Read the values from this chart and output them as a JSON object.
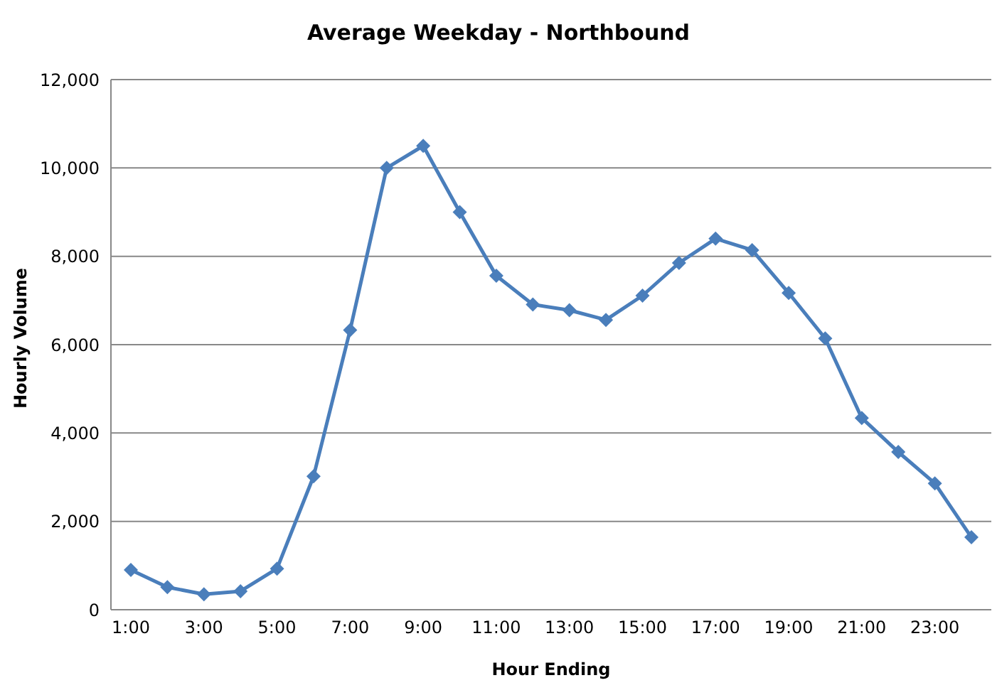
{
  "chart_data": {
    "type": "line",
    "title": "Average Weekday - Northbound",
    "xlabel": "Hour Ending",
    "ylabel": "Hourly Volume",
    "categories": [
      "1:00",
      null,
      "3:00",
      null,
      "5:00",
      null,
      "7:00",
      null,
      "9:00",
      null,
      "11:00",
      null,
      "13:00",
      null,
      "15:00",
      null,
      "17:00",
      null,
      "19:00",
      null,
      "21:00",
      null,
      "23:00",
      null
    ],
    "series": [
      {
        "color": "#4a7ebb",
        "values": [
          900,
          510,
          350,
          420,
          930,
          3020,
          6330,
          10000,
          10500,
          9000,
          7560,
          6910,
          6780,
          6560,
          7110,
          7850,
          8400,
          8140,
          7170,
          6140,
          4340,
          3570,
          2860,
          1640
        ]
      }
    ],
    "ylim": [
      0,
      12000
    ],
    "yticks": [
      0,
      {
        "value": 2000,
        "label": "2,000"
      },
      {
        "value": 4000,
        "label": "4,000"
      },
      {
        "value": 6000,
        "label": "6,000"
      },
      {
        "value": 8000,
        "label": "8,000"
      },
      {
        "value": 10000,
        "label": "10,000"
      },
      {
        "value": 12000,
        "label": "12,000"
      }
    ],
    "grid": "y",
    "legend": false,
    "marker": "diamond",
    "line_style": "solid"
  }
}
